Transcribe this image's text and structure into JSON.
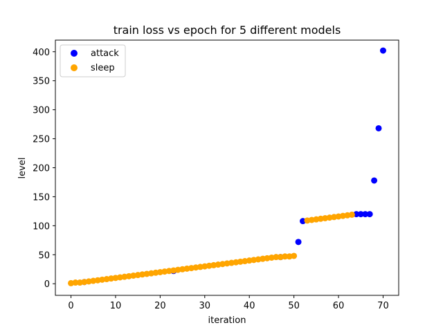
{
  "chart_data": {
    "type": "scatter",
    "title": "train loss vs epoch for 5 different models",
    "xlabel": "iteration",
    "ylabel": "level",
    "xlim": [
      -3.5,
      73.5
    ],
    "ylim": [
      -20,
      420
    ],
    "xticks": [
      0,
      10,
      20,
      30,
      40,
      50,
      60,
      70
    ],
    "yticks": [
      0,
      50,
      100,
      150,
      200,
      250,
      300,
      350,
      400
    ],
    "grid": false,
    "legend": "top-left",
    "series": [
      {
        "name": "attack",
        "color": "#0000ff",
        "x": [
          3,
          23,
          47,
          51,
          52,
          64,
          65,
          66,
          67,
          68,
          69,
          70
        ],
        "y": [
          3,
          22,
          46,
          72,
          108,
          120,
          120,
          120,
          120,
          178,
          268,
          402
        ]
      },
      {
        "name": "sleep",
        "color": "#ffa500",
        "x": [
          0,
          1,
          2,
          3,
          4,
          5,
          6,
          7,
          8,
          9,
          10,
          11,
          12,
          13,
          14,
          15,
          16,
          17,
          18,
          19,
          20,
          21,
          22,
          23,
          24,
          25,
          26,
          27,
          28,
          29,
          30,
          31,
          32,
          33,
          34,
          35,
          36,
          37,
          38,
          39,
          40,
          41,
          42,
          43,
          44,
          45,
          46,
          47,
          48,
          49,
          50,
          53,
          54,
          55,
          56,
          57,
          58,
          59,
          60,
          61,
          62,
          63
        ],
        "y": [
          1,
          2,
          2,
          3,
          4,
          5,
          6,
          7,
          8,
          9,
          10,
          11,
          12,
          13,
          14,
          15,
          16,
          17,
          18,
          19,
          20,
          21,
          22,
          23,
          24,
          25,
          26,
          27,
          28,
          29,
          30,
          31,
          32,
          33,
          34,
          35,
          36,
          37,
          38,
          39,
          40,
          41,
          42,
          43,
          44,
          45,
          46,
          46,
          47,
          47,
          48,
          109,
          110,
          111,
          112,
          113,
          114,
          115,
          116,
          117,
          118,
          119
        ]
      }
    ]
  }
}
